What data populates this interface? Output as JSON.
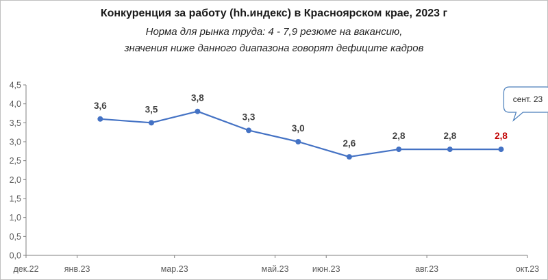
{
  "title": "Конкуренция за работу (hh.индекс) в Красноярском крае, 2023 г",
  "subtitle_lines": [
    "Норма для рынка труда: 4 - 7,9 резюме на вакансию,",
    "значения ниже данного диапазона говорят дефиците кадров"
  ],
  "callout": "сент. 23",
  "colors": {
    "line": "#4472c4",
    "label": "#404040",
    "highlight_label": "#c00000",
    "axis": "#7f7f7f",
    "callout_border": "#4a7ebb"
  },
  "chart_data": {
    "type": "line",
    "x": [
      "2023-01-15",
      "2023-02-15",
      "2023-03-15",
      "2023-04-15",
      "2023-05-15",
      "2023-06-15",
      "2023-07-15",
      "2023-08-15",
      "2023-09-15"
    ],
    "series": [
      {
        "values": [
          3.6,
          3.5,
          3.8,
          3.3,
          3.0,
          2.6,
          2.8,
          2.8,
          2.8
        ]
      }
    ],
    "data_labels": [
      "3,6",
      "3,5",
      "3,8",
      "3,3",
      "3,0",
      "2,6",
      "2,8",
      "2,8",
      "2,8"
    ],
    "highlight_index": 8,
    "ylim": [
      0,
      4.5
    ],
    "yticks": [
      "0,0",
      "0,5",
      "1,0",
      "1,5",
      "2,0",
      "2,5",
      "3,0",
      "3,5",
      "4,0",
      "4,5"
    ],
    "xlim": [
      "2022-12-01",
      "2023-10-01"
    ],
    "xticks": [
      "дек.22",
      "янв.23",
      "мар.23",
      "май.23",
      "июн.23",
      "авг.23",
      "окт.23"
    ],
    "grid": false,
    "legend": "none"
  }
}
